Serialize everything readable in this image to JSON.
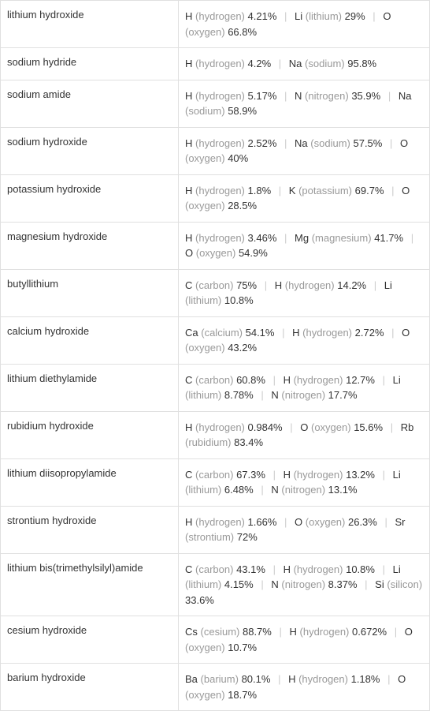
{
  "colors": {
    "border": "#e0e0e0",
    "text_primary": "#333333",
    "text_secondary": "#999999",
    "separator": "#cccccc",
    "background": "#ffffff"
  },
  "typography": {
    "font_family": "Arial, Helvetica, sans-serif",
    "font_size": 13,
    "line_height": 1.5
  },
  "layout": {
    "name_column_width": 226,
    "cell_padding": "10px 8px"
  },
  "rows": [
    {
      "name": "lithium hydroxide",
      "elements": [
        {
          "symbol": "H",
          "element": "hydrogen",
          "percent": "4.21%"
        },
        {
          "symbol": "Li",
          "element": "lithium",
          "percent": "29%"
        },
        {
          "symbol": "O",
          "element": "oxygen",
          "percent": "66.8%"
        }
      ]
    },
    {
      "name": "sodium hydride",
      "elements": [
        {
          "symbol": "H",
          "element": "hydrogen",
          "percent": "4.2%"
        },
        {
          "symbol": "Na",
          "element": "sodium",
          "percent": "95.8%"
        }
      ]
    },
    {
      "name": "sodium amide",
      "elements": [
        {
          "symbol": "H",
          "element": "hydrogen",
          "percent": "5.17%"
        },
        {
          "symbol": "N",
          "element": "nitrogen",
          "percent": "35.9%"
        },
        {
          "symbol": "Na",
          "element": "sodium",
          "percent": "58.9%"
        }
      ]
    },
    {
      "name": "sodium hydroxide",
      "elements": [
        {
          "symbol": "H",
          "element": "hydrogen",
          "percent": "2.52%"
        },
        {
          "symbol": "Na",
          "element": "sodium",
          "percent": "57.5%"
        },
        {
          "symbol": "O",
          "element": "oxygen",
          "percent": "40%"
        }
      ]
    },
    {
      "name": "potassium hydroxide",
      "elements": [
        {
          "symbol": "H",
          "element": "hydrogen",
          "percent": "1.8%"
        },
        {
          "symbol": "K",
          "element": "potassium",
          "percent": "69.7%"
        },
        {
          "symbol": "O",
          "element": "oxygen",
          "percent": "28.5%"
        }
      ]
    },
    {
      "name": "magnesium hydroxide",
      "elements": [
        {
          "symbol": "H",
          "element": "hydrogen",
          "percent": "3.46%"
        },
        {
          "symbol": "Mg",
          "element": "magnesium",
          "percent": "41.7%"
        },
        {
          "symbol": "O",
          "element": "oxygen",
          "percent": "54.9%"
        }
      ]
    },
    {
      "name": "butyllithium",
      "elements": [
        {
          "symbol": "C",
          "element": "carbon",
          "percent": "75%"
        },
        {
          "symbol": "H",
          "element": "hydrogen",
          "percent": "14.2%"
        },
        {
          "symbol": "Li",
          "element": "lithium",
          "percent": "10.8%"
        }
      ]
    },
    {
      "name": "calcium hydroxide",
      "elements": [
        {
          "symbol": "Ca",
          "element": "calcium",
          "percent": "54.1%"
        },
        {
          "symbol": "H",
          "element": "hydrogen",
          "percent": "2.72%"
        },
        {
          "symbol": "O",
          "element": "oxygen",
          "percent": "43.2%"
        }
      ]
    },
    {
      "name": "lithium diethylamide",
      "elements": [
        {
          "symbol": "C",
          "element": "carbon",
          "percent": "60.8%"
        },
        {
          "symbol": "H",
          "element": "hydrogen",
          "percent": "12.7%"
        },
        {
          "symbol": "Li",
          "element": "lithium",
          "percent": "8.78%"
        },
        {
          "symbol": "N",
          "element": "nitrogen",
          "percent": "17.7%"
        }
      ]
    },
    {
      "name": "rubidium hydroxide",
      "elements": [
        {
          "symbol": "H",
          "element": "hydrogen",
          "percent": "0.984%"
        },
        {
          "symbol": "O",
          "element": "oxygen",
          "percent": "15.6%"
        },
        {
          "symbol": "Rb",
          "element": "rubidium",
          "percent": "83.4%"
        }
      ]
    },
    {
      "name": "lithium diisopropylamide",
      "elements": [
        {
          "symbol": "C",
          "element": "carbon",
          "percent": "67.3%"
        },
        {
          "symbol": "H",
          "element": "hydrogen",
          "percent": "13.2%"
        },
        {
          "symbol": "Li",
          "element": "lithium",
          "percent": "6.48%"
        },
        {
          "symbol": "N",
          "element": "nitrogen",
          "percent": "13.1%"
        }
      ]
    },
    {
      "name": "strontium hydroxide",
      "elements": [
        {
          "symbol": "H",
          "element": "hydrogen",
          "percent": "1.66%"
        },
        {
          "symbol": "O",
          "element": "oxygen",
          "percent": "26.3%"
        },
        {
          "symbol": "Sr",
          "element": "strontium",
          "percent": "72%"
        }
      ]
    },
    {
      "name": "lithium bis(trimethylsilyl)amide",
      "elements": [
        {
          "symbol": "C",
          "element": "carbon",
          "percent": "43.1%"
        },
        {
          "symbol": "H",
          "element": "hydrogen",
          "percent": "10.8%"
        },
        {
          "symbol": "Li",
          "element": "lithium",
          "percent": "4.15%"
        },
        {
          "symbol": "N",
          "element": "nitrogen",
          "percent": "8.37%"
        },
        {
          "symbol": "Si",
          "element": "silicon",
          "percent": "33.6%"
        }
      ]
    },
    {
      "name": "cesium hydroxide",
      "elements": [
        {
          "symbol": "Cs",
          "element": "cesium",
          "percent": "88.7%"
        },
        {
          "symbol": "H",
          "element": "hydrogen",
          "percent": "0.672%"
        },
        {
          "symbol": "O",
          "element": "oxygen",
          "percent": "10.7%"
        }
      ]
    },
    {
      "name": "barium hydroxide",
      "elements": [
        {
          "symbol": "Ba",
          "element": "barium",
          "percent": "80.1%"
        },
        {
          "symbol": "H",
          "element": "hydrogen",
          "percent": "1.18%"
        },
        {
          "symbol": "O",
          "element": "oxygen",
          "percent": "18.7%"
        }
      ]
    }
  ]
}
